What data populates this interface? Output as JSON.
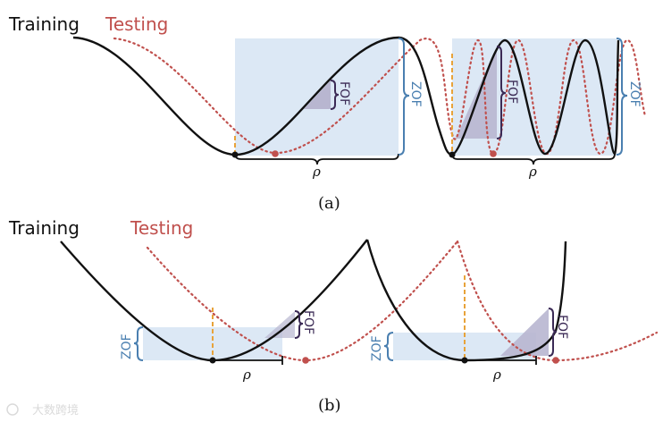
{
  "colors": {
    "training": "#111111",
    "testing": "#c0504d",
    "region": "#dce8f5",
    "zof": "#4a7fb0",
    "fof": "#3b2a55",
    "fof_fill": "#b8b6d0",
    "minimum_marker": "#e8a33a"
  },
  "legend": {
    "training": "Training",
    "testing": "Testing"
  },
  "annotations": {
    "zof": "ZOF",
    "fof": "FOF",
    "rho": "ρ"
  },
  "panels": {
    "a": {
      "caption": "(a)"
    },
    "b": {
      "caption": "(b)"
    }
  },
  "watermark": "大数跨境"
}
